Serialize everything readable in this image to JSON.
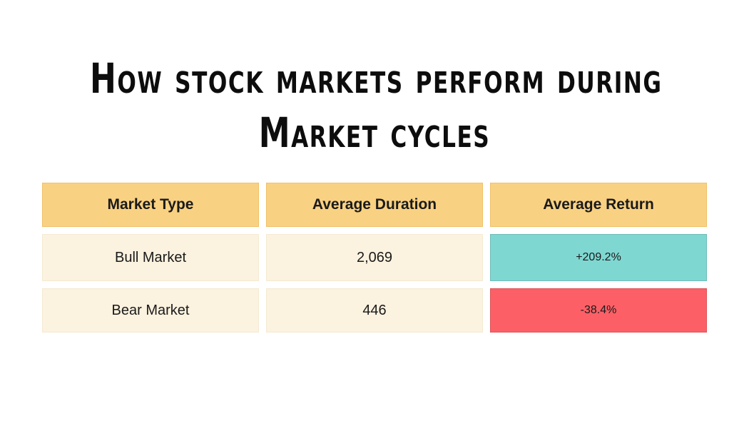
{
  "title": {
    "line1": "How Stock Markets Perform During",
    "line2": "Market Cycles"
  },
  "table": {
    "headers": {
      "market_type": "Market Type",
      "average_duration": "Average Duration",
      "average_return": "Average Return"
    },
    "rows": [
      {
        "market_type": "Bull Market",
        "average_duration": "2,069",
        "average_return": "+209.2%",
        "return_bg": "#7fd7d1"
      },
      {
        "market_type": "Bear Market",
        "average_duration": "446",
        "average_return": "-38.4%",
        "return_bg": "#fc6066"
      }
    ]
  },
  "colors": {
    "background": "#ffffff",
    "title_text": "#0d0d0d",
    "header_bg": "#f9d182",
    "row_bg": "#fbf2df",
    "positive_bg": "#7fd7d1",
    "negative_bg": "#fc6066",
    "cell_text": "#1a1a1a"
  }
}
